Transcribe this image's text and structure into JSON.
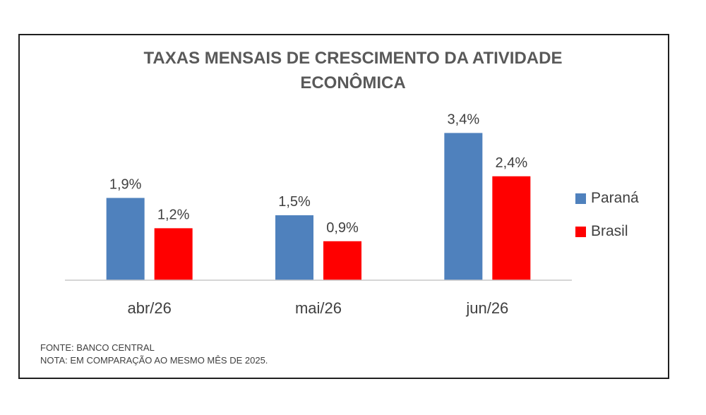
{
  "chart_data": {
    "type": "bar",
    "title_lines": [
      "TAXAS MENSAIS DE CRESCIMENTO  DA ATIVIDADE",
      "ECONÔMICA"
    ],
    "categories": [
      "abr/26",
      "mai/26",
      "jun/26"
    ],
    "series": [
      {
        "name": "Paraná",
        "color": "#4f81bd",
        "values": [
          1.9,
          1.5,
          3.4
        ],
        "labels": [
          "1,9%",
          "1,5%",
          "3,4%"
        ]
      },
      {
        "name": "Brasil",
        "color": "#ff0000",
        "values": [
          1.2,
          0.9,
          2.4
        ],
        "labels": [
          "1,2%",
          "0,9%",
          "2,4%"
        ]
      }
    ],
    "ylim": [
      0,
      3.7
    ],
    "grid": false,
    "legend_position": "right",
    "notes": [
      "FONTE: BANCO CENTRAL",
      "NOTA: EM COMPARAÇÃO AO MESMO MÊS DE 2025."
    ]
  }
}
